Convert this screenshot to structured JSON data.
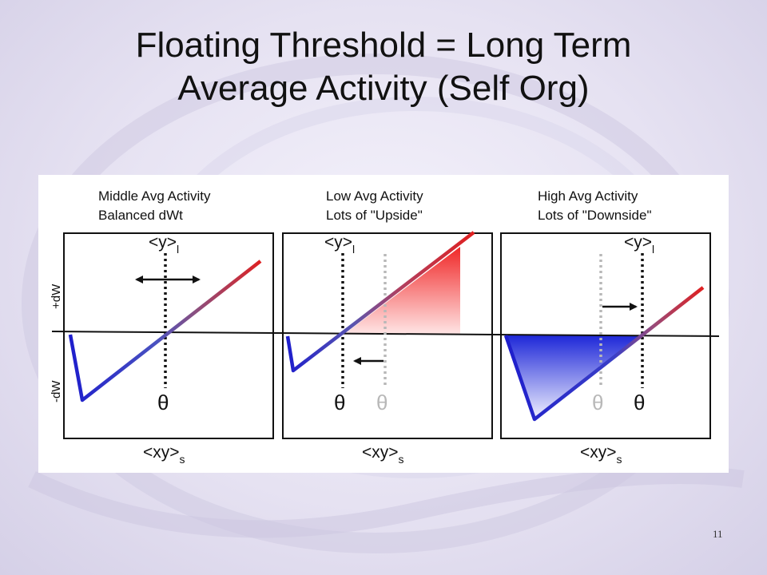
{
  "slide": {
    "title_line1": "Floating Threshold = Long Term",
    "title_line2": "Average Activity (Self Org)",
    "page_number": "11"
  },
  "figure": {
    "axis_labels": {
      "positive": "+dW",
      "negative": "-dW"
    },
    "y_label": "<y>",
    "y_sub": "l",
    "x_label": "<xy>",
    "x_sub": "s",
    "theta_symbol": "θ",
    "panels": [
      {
        "id": "middle",
        "caption_line1": "Middle Avg Activity",
        "caption_line2": "Balanced dWt"
      },
      {
        "id": "low",
        "caption_line1": "Low Avg Activity",
        "caption_line2": "Lots of \"Upside\""
      },
      {
        "id": "high",
        "caption_line1": "High Avg Activity",
        "caption_line2": "Lots of \"Downside\""
      }
    ],
    "colors": {
      "positive": "#e02020",
      "negative": "#1e1ecc",
      "ghost": "#b8b8b8"
    }
  }
}
